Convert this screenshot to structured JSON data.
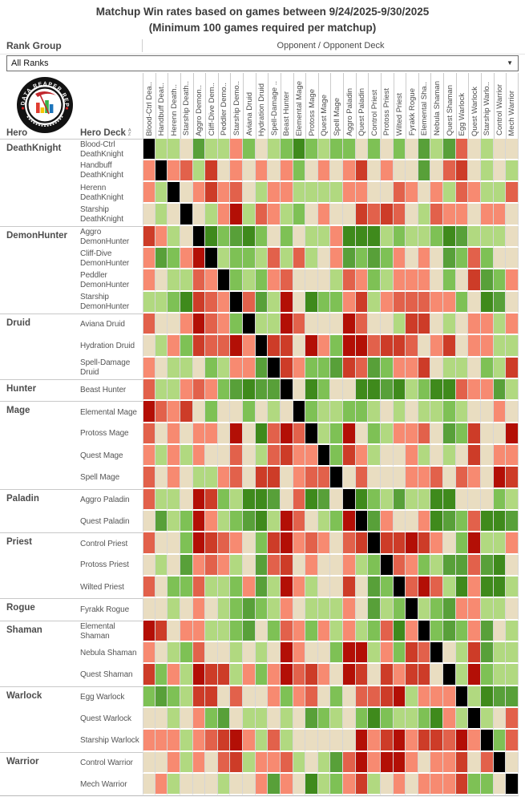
{
  "title": {
    "line1": "Matchup Win rates based on games between 9/24/2025-9/30/2025",
    "line2": "(Minimum 100 games required per matchup)"
  },
  "controls": {
    "rank_group_label": "Rank Group",
    "rank_group_value": "All Ranks",
    "opponent_header": "Opponent / Opponent Deck"
  },
  "axis": {
    "hero_label": "Hero",
    "deck_label": "Hero Deck",
    "sort_icon_top": "A",
    "sort_icon_bottom": "Z"
  },
  "logo": {
    "arc_text": "DATA REAPER REPORT"
  },
  "chart_data": {
    "type": "heatmap",
    "title": "Matchup Win rates based on games between 9/24/2025-9/30/2025",
    "subtitle": "(Minimum 100 games required per matchup)",
    "x_axis_label": "Opponent / Opponent Deck",
    "y_axis_label": "Hero / Hero Deck",
    "legend_position": "none",
    "grid": true,
    "columns": [
      "Blood-Ctrl Dea..",
      "Handbuff Deat..",
      "Herenn Death..",
      "Starship Death..",
      "Aggro Demon..",
      "Cliff-Dive Dem..",
      "Peddler Demo..",
      "Starship Demo..",
      "Aviana Druid",
      "Hydration Druid",
      "Spell-Damage ..",
      "Beast Hunter",
      "Elemental Mage",
      "Protoss Mage",
      "Quest Mage",
      "Spell Mage",
      "Aggro Paladin",
      "Quest Paladin",
      "Control Priest",
      "Protoss Priest",
      "Wilted Priest",
      "Fyrakk Rogue",
      "Elemental Sha..",
      "Nebula Shaman",
      "Quest Shaman",
      "Egg Warlock",
      "Quest Warlock",
      "Starship Warlo..",
      "Control Warrior",
      "Mech Warrior"
    ],
    "hero_groups": [
      {
        "hero": "DeathKnight",
        "decks": [
          "Blood-Ctrl DeathKnight",
          "Handbuff DeathKnight",
          "Herenn DeathKnight",
          "Starship DeathKnight"
        ]
      },
      {
        "hero": "DemonHunter",
        "decks": [
          "Aggro DemonHunter",
          "Cliff-Dive DemonHunter",
          "Peddler DemonHunter",
          "Starship DemonHunter"
        ]
      },
      {
        "hero": "Druid",
        "decks": [
          "Aviana Druid",
          "Hydration Druid",
          "Spell-Damage Druid"
        ]
      },
      {
        "hero": "Hunter",
        "decks": [
          "Beast Hunter"
        ]
      },
      {
        "hero": "Mage",
        "decks": [
          "Elemental Mage",
          "Protoss Mage",
          "Quest Mage",
          "Spell Mage"
        ]
      },
      {
        "hero": "Paladin",
        "decks": [
          "Aggro Paladin",
          "Quest Paladin"
        ]
      },
      {
        "hero": "Priest",
        "decks": [
          "Control Priest",
          "Protoss Priest",
          "Wilted Priest"
        ]
      },
      {
        "hero": "Rogue",
        "decks": [
          "Fyrakk Rogue"
        ]
      },
      {
        "hero": "Shaman",
        "decks": [
          "Elemental Shaman",
          "Nebula Shaman",
          "Quest Shaman"
        ]
      },
      {
        "hero": "Warlock",
        "decks": [
          "Egg Warlock",
          "Quest Warlock",
          "Starship Warlock"
        ]
      },
      {
        "hero": "Warrior",
        "decks": [
          "Control Warrior",
          "Mech Warrior"
        ]
      }
    ],
    "palette": {
      "K": {
        "color": "#000000",
        "meaning": "mirror matchup (no data)"
      },
      "A": {
        "color": "#b30f06",
        "meaning": "win rate < 40%"
      },
      "B": {
        "color": "#cd3c28",
        "meaning": "win rate ~40-44%"
      },
      "C": {
        "color": "#e2614b",
        "meaning": "win rate ~44-47%"
      },
      "D": {
        "color": "#f78a71",
        "meaning": "win rate ~47-50%"
      },
      "E": {
        "color": "#e9ddc1",
        "meaning": "win rate ~50%"
      },
      "F": {
        "color": "#b1d980",
        "meaning": "win rate ~50-53%"
      },
      "G": {
        "color": "#7ec155",
        "meaning": "win rate ~53-56%"
      },
      "H": {
        "color": "#58a039",
        "meaning": "win rate ~56-60%"
      },
      "I": {
        "color": "#3f8a1c",
        "meaning": "win rate > 60%"
      }
    },
    "matrix": [
      "KFFEHFFDGEFGIGFGGEGEGEHFHCEFEE",
      "DKDCFBEDEDEDGEDEDBEDEEHECBEFEF",
      "DFKEDBDCEFDDFFFFDDEECDEDFCDFFC",
      "EFEKEFDAFCDFGEDEEBCBCEFCDDEDDE",
      "BDFEKIGHIGEGEFFDIIIFGFFGIHFFFE",
      "DHGDAKFGGFCFCFEDHGHGDEDEHGCGEE",
      "DEFFCDKGFGDCEEEFCDGFDDDEGEBHGD",
      "FFGIBCDKCHFAEIGGDBFDCCCDDGEIHE",
      "CEEDACDGKFFACEEEACEEFBBEFEDDFD",
      "EFDGBCCADKBBEADGAACBBCEDBEDDFF",
      "DEFFEGFDDHKBDGGHBCHGDDBEFFEGFB",
      "CFFDCDGHIHHKEIGEEIIHIFGIICDDHF",
      "ACDBEGEEGEFEKGFFGGFEFEFFGFEEDE",
      "CEDEDDEAEICACKFGAEGFDDCEHGBEEA",
      "DFDFDEECEFCBDDKGBDFEEDFEFEBEDD",
      "CEDEFFDCEBBEDCCKECEEEDDCECDEAB",
      "CFFEABGFIIHECIHEKIGFHFFIIEEEGF",
      "EHFGADFGHIFACEFGAKHDEEDIHGCIIH",
      "CEEGABCDEGBADCDECBKBBABDEGAFFD",
      "EFEHDCDFEHCBEDEEDFGKCDGFHHCHIE",
      "CEGGCFFGDHFADFEEBEHGKCACFIDIIF",
      "EEFEDEFGHGFDEFFFDEHFGKFGHDDFFE",
      "ABEDDFFGHEGCDGDFDFGCIDKGHGDHEF",
      "DEFGCEEFEFEADEEGAAFDGBCKEFBHFF",
      "BGDFABBFDGDACBDEABEBDBBEKFAGFF",
      "GHGFBBECEEDGDCEGECCBAFDDDKFIHH",
      "EEFEDGHEFFEFEHGFEGIGFFGIDFKFEC",
      "DDDFDCBADFCFEEEEEADBADBBCADKGC",
      "EEDFDECBFDDCFEFHCADAADEDDBECKE",
      "EDFEEEFEEDHDEIFGDBFEDEDDDBGGEK"
    ]
  }
}
